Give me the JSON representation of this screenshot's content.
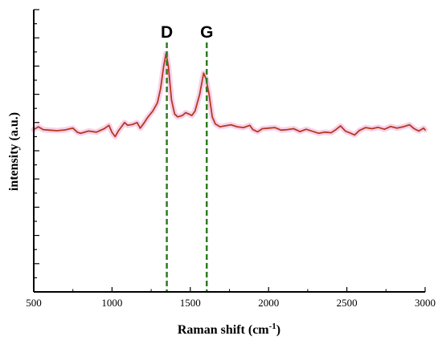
{
  "chart_data": {
    "type": "line",
    "xlabel": "Raman shift (cm",
    "xlabel_sup": "-1",
    "xlabel_close": ")",
    "ylabel": "intensity (a.u.)",
    "xlim": [
      500,
      3000
    ],
    "ylim": [
      0,
      100
    ],
    "x_ticks": [
      "500",
      "1000",
      "1500",
      "2000",
      "2500",
      "3000"
    ],
    "y_tick_labels_shown": false,
    "grid": false,
    "line_color": "#b23a1e",
    "fill_color": "#f7c9e8",
    "marker_color": "#2e7d1f",
    "markers": [
      {
        "label": "D",
        "x": 1350
      },
      {
        "label": "G",
        "x": 1605
      }
    ],
    "series": [
      {
        "points": [
          [
            500,
            57.5
          ],
          [
            530,
            58.5
          ],
          [
            560,
            57.5
          ],
          [
            600,
            57.3
          ],
          [
            650,
            57.1
          ],
          [
            700,
            57.4
          ],
          [
            750,
            58.0
          ],
          [
            780,
            56.5
          ],
          [
            800,
            56.2
          ],
          [
            850,
            57.0
          ],
          [
            900,
            56.6
          ],
          [
            950,
            57.8
          ],
          [
            980,
            59.0
          ],
          [
            1000,
            56.5
          ],
          [
            1020,
            55.0
          ],
          [
            1040,
            57.0
          ],
          [
            1060,
            58.5
          ],
          [
            1080,
            60.0
          ],
          [
            1100,
            59.0
          ],
          [
            1130,
            59.3
          ],
          [
            1160,
            60.0
          ],
          [
            1180,
            58.0
          ],
          [
            1200,
            59.5
          ],
          [
            1230,
            62.0
          ],
          [
            1260,
            64.0
          ],
          [
            1290,
            67.0
          ],
          [
            1310,
            72.0
          ],
          [
            1330,
            80.0
          ],
          [
            1345,
            84.5
          ],
          [
            1360,
            80.0
          ],
          [
            1380,
            68.0
          ],
          [
            1400,
            63.0
          ],
          [
            1420,
            62.0
          ],
          [
            1450,
            62.5
          ],
          [
            1470,
            63.5
          ],
          [
            1490,
            63.0
          ],
          [
            1510,
            62.5
          ],
          [
            1530,
            64.0
          ],
          [
            1560,
            70.0
          ],
          [
            1585,
            77.5
          ],
          [
            1600,
            75.5
          ],
          [
            1620,
            70.0
          ],
          [
            1640,
            62.0
          ],
          [
            1660,
            59.5
          ],
          [
            1690,
            58.5
          ],
          [
            1720,
            58.8
          ],
          [
            1760,
            59.2
          ],
          [
            1800,
            58.5
          ],
          [
            1840,
            58.2
          ],
          [
            1880,
            59.0
          ],
          [
            1900,
            57.5
          ],
          [
            1930,
            56.7
          ],
          [
            1960,
            57.8
          ],
          [
            2000,
            58.0
          ],
          [
            2040,
            58.2
          ],
          [
            2080,
            57.3
          ],
          [
            2120,
            57.5
          ],
          [
            2160,
            57.8
          ],
          [
            2200,
            56.8
          ],
          [
            2240,
            57.6
          ],
          [
            2280,
            56.9
          ],
          [
            2320,
            56.2
          ],
          [
            2360,
            56.6
          ],
          [
            2400,
            56.4
          ],
          [
            2430,
            57.5
          ],
          [
            2460,
            58.8
          ],
          [
            2490,
            57.0
          ],
          [
            2520,
            56.3
          ],
          [
            2550,
            55.6
          ],
          [
            2580,
            57.2
          ],
          [
            2620,
            58.2
          ],
          [
            2660,
            57.8
          ],
          [
            2700,
            58.3
          ],
          [
            2740,
            57.6
          ],
          [
            2780,
            58.6
          ],
          [
            2820,
            58.0
          ],
          [
            2860,
            58.5
          ],
          [
            2900,
            59.2
          ],
          [
            2930,
            57.8
          ],
          [
            2960,
            57.0
          ],
          [
            2990,
            58.0
          ],
          [
            3000,
            57.4
          ]
        ]
      }
    ]
  }
}
